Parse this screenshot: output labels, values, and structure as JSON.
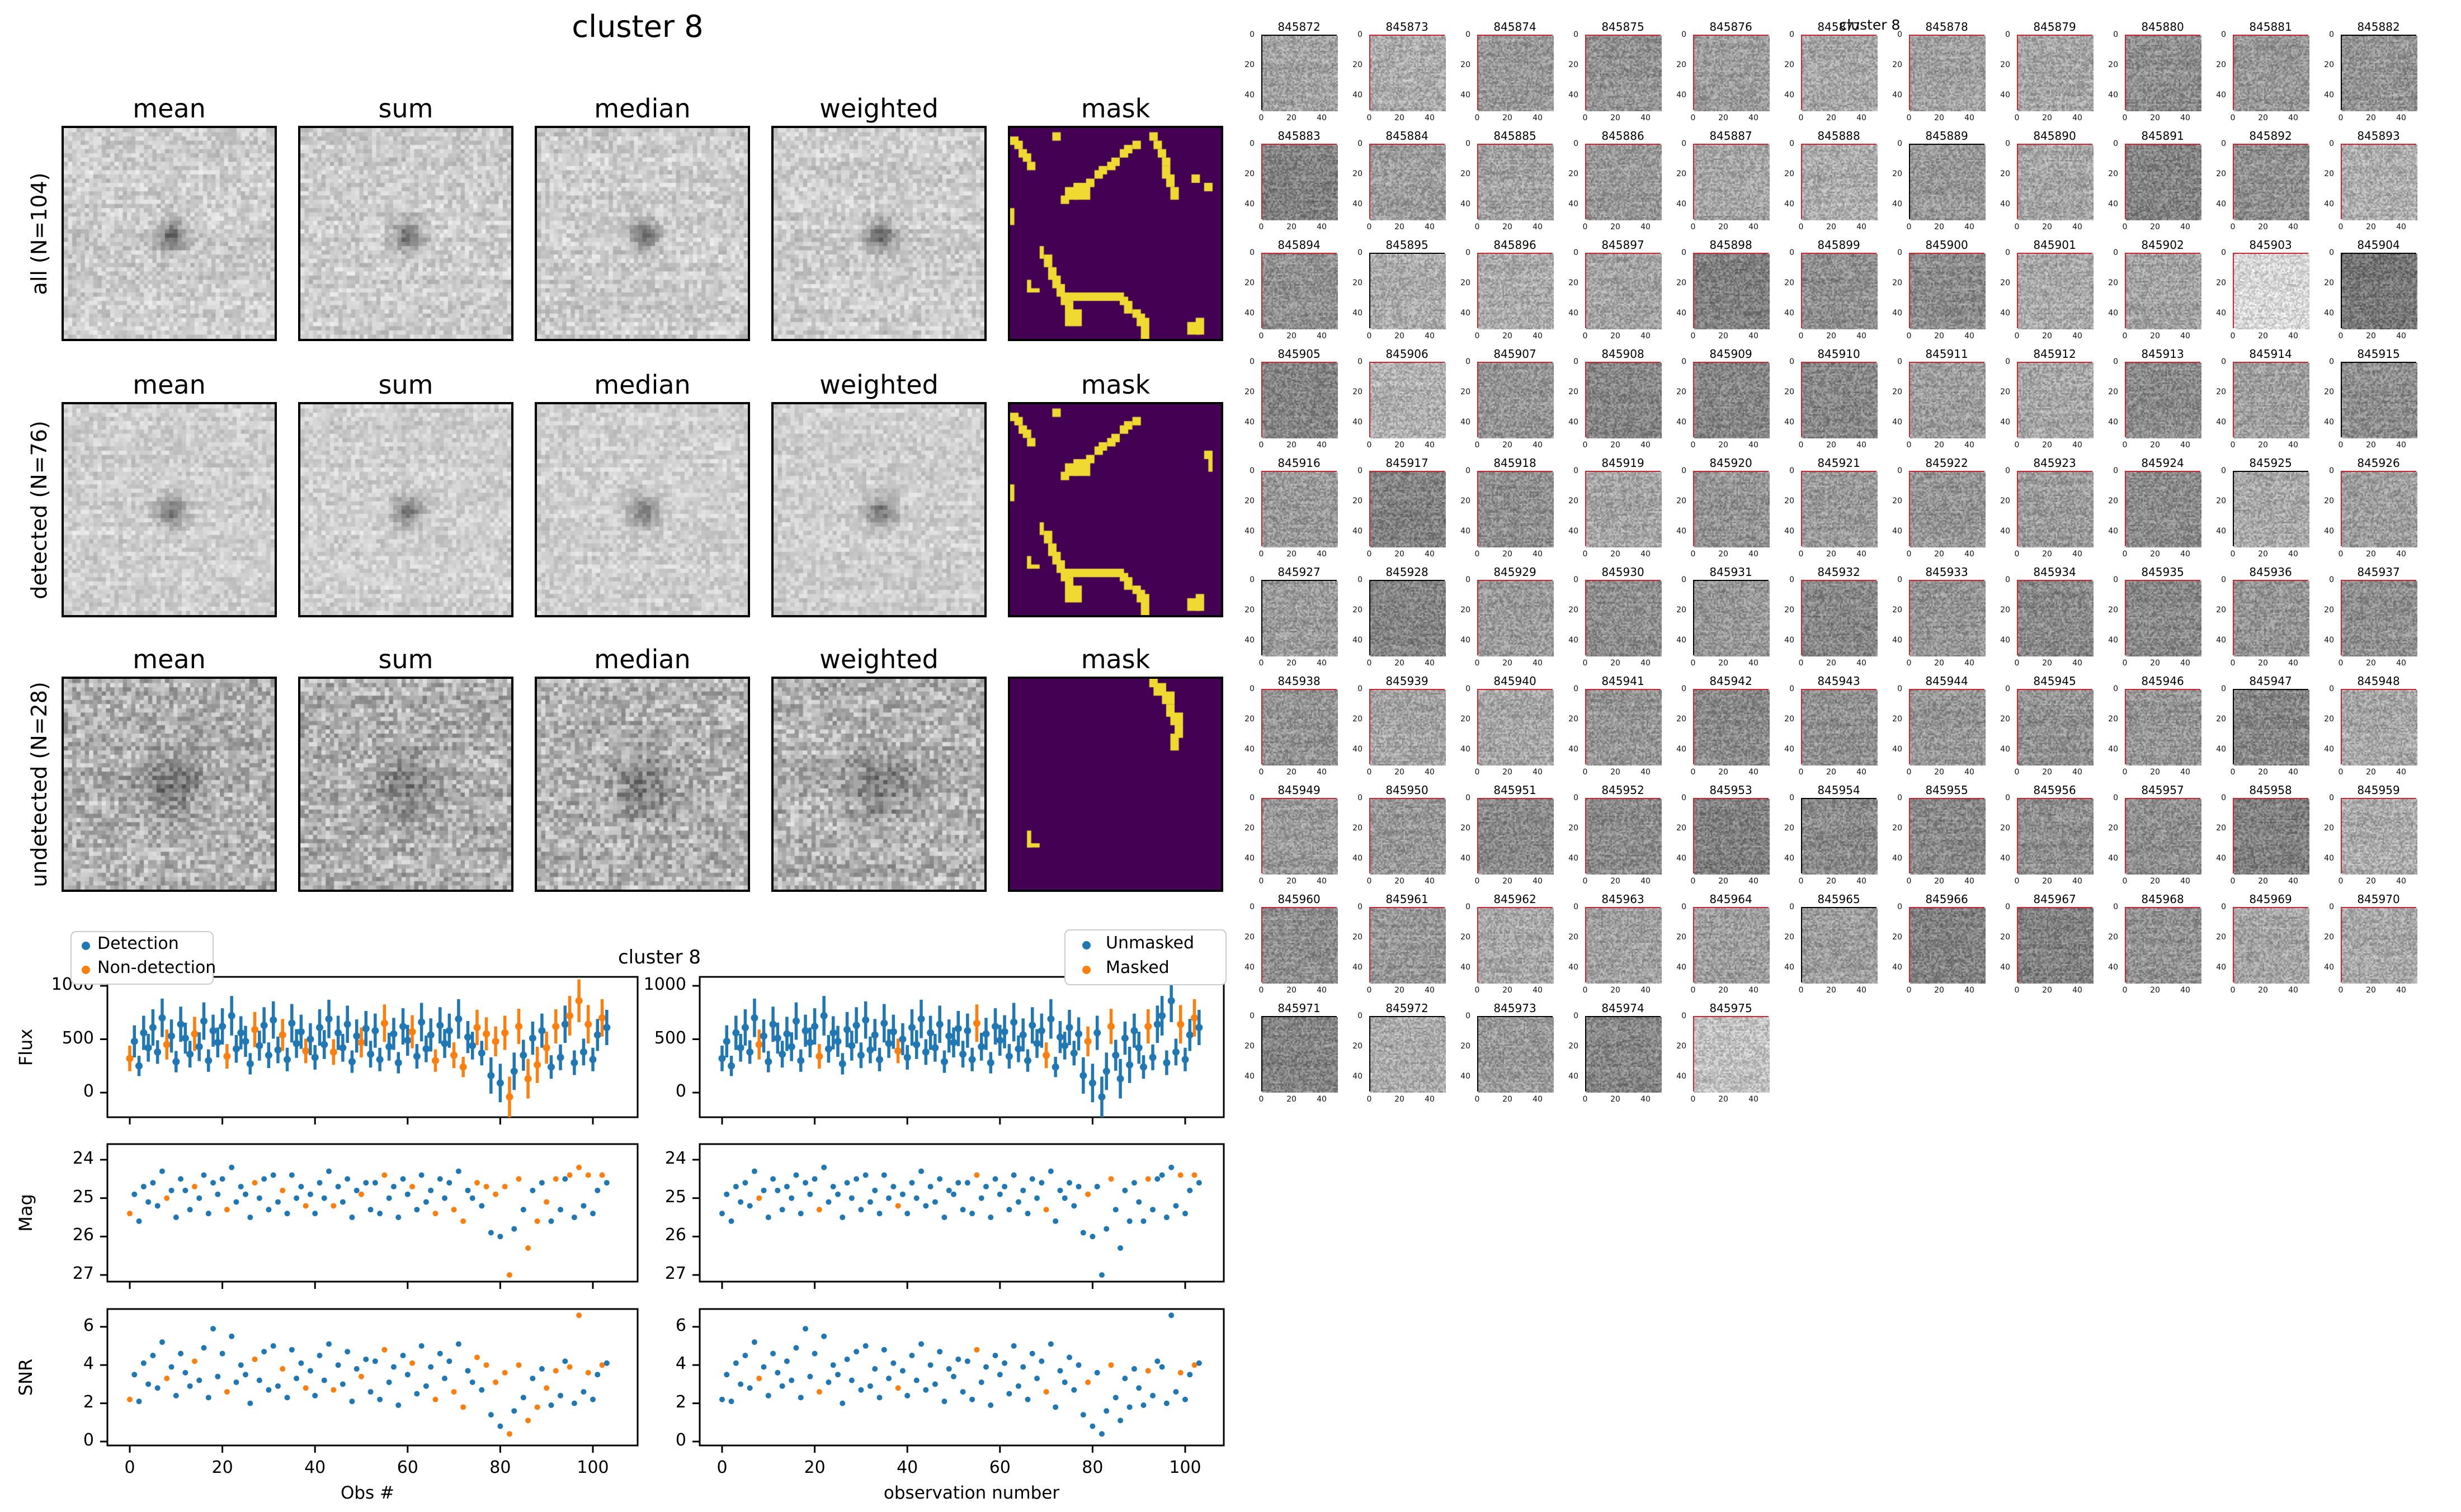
{
  "left_figure": {
    "title": "cluster 8",
    "columns": [
      "mean",
      "sum",
      "median",
      "weighted",
      "mask"
    ],
    "rows": [
      {
        "label": "all (N=104)",
        "mask": "all"
      },
      {
        "label": "detected (N=76)",
        "mask": "detected"
      },
      {
        "label": "undetected (N=28)",
        "mask": "undetected"
      }
    ],
    "mask_bg": "#440154",
    "mask_fg": "#f0d930"
  },
  "masks": {
    "all": [
      [
        0,
        2,
        2,
        2
      ],
      [
        1,
        3,
        2,
        2
      ],
      [
        2,
        5,
        2,
        2
      ],
      [
        3,
        6,
        2,
        2
      ],
      [
        4,
        8,
        2,
        2
      ],
      [
        10,
        1,
        2,
        2
      ],
      [
        12,
        16,
        2,
        2
      ],
      [
        13,
        14,
        3,
        3
      ],
      [
        15,
        13,
        4,
        4
      ],
      [
        18,
        12,
        2,
        2
      ],
      [
        20,
        10,
        2,
        2
      ],
      [
        21,
        9,
        2,
        2
      ],
      [
        23,
        8,
        2,
        2
      ],
      [
        24,
        7,
        2,
        2
      ],
      [
        26,
        5,
        2,
        2
      ],
      [
        27,
        4,
        2,
        2
      ],
      [
        29,
        3,
        2,
        2
      ],
      [
        33,
        1,
        2,
        2
      ],
      [
        34,
        3,
        2,
        2
      ],
      [
        35,
        5,
        2,
        2
      ],
      [
        36,
        7,
        2,
        2
      ],
      [
        36,
        9,
        2,
        3
      ],
      [
        37,
        11,
        2,
        3
      ],
      [
        38,
        14,
        2,
        3
      ],
      [
        43,
        11,
        2,
        2
      ],
      [
        46,
        13,
        2,
        2
      ],
      [
        0,
        19,
        1,
        4
      ],
      [
        7,
        28,
        1,
        3
      ],
      [
        8,
        30,
        2,
        3
      ],
      [
        9,
        33,
        2,
        3
      ],
      [
        10,
        35,
        2,
        3
      ],
      [
        11,
        37,
        2,
        3
      ],
      [
        12,
        39,
        2,
        3
      ],
      [
        13,
        41,
        2,
        3
      ],
      [
        13,
        43,
        4,
        4
      ],
      [
        4,
        36,
        1,
        3
      ],
      [
        4,
        38,
        3,
        1
      ],
      [
        13,
        39,
        14,
        2
      ],
      [
        26,
        40,
        2,
        2
      ],
      [
        27,
        41,
        2,
        3
      ],
      [
        29,
        43,
        2,
        2
      ],
      [
        30,
        44,
        2,
        3
      ],
      [
        31,
        45,
        2,
        5
      ],
      [
        42,
        46,
        3,
        3
      ],
      [
        44,
        45,
        2,
        4
      ]
    ],
    "detected": [
      [
        0,
        2,
        2,
        2
      ],
      [
        1,
        3,
        2,
        2
      ],
      [
        2,
        5,
        2,
        2
      ],
      [
        3,
        6,
        2,
        2
      ],
      [
        4,
        8,
        2,
        2
      ],
      [
        10,
        1,
        2,
        2
      ],
      [
        12,
        16,
        2,
        2
      ],
      [
        13,
        14,
        3,
        3
      ],
      [
        15,
        13,
        4,
        4
      ],
      [
        18,
        12,
        2,
        2
      ],
      [
        20,
        10,
        2,
        2
      ],
      [
        21,
        9,
        2,
        2
      ],
      [
        23,
        8,
        2,
        2
      ],
      [
        24,
        7,
        2,
        2
      ],
      [
        26,
        5,
        2,
        2
      ],
      [
        27,
        4,
        2,
        2
      ],
      [
        29,
        3,
        2,
        2
      ],
      [
        46,
        11,
        2,
        2
      ],
      [
        47,
        13,
        1,
        3
      ],
      [
        0,
        19,
        1,
        4
      ],
      [
        7,
        28,
        1,
        3
      ],
      [
        8,
        30,
        2,
        3
      ],
      [
        9,
        33,
        2,
        3
      ],
      [
        10,
        35,
        2,
        3
      ],
      [
        11,
        37,
        2,
        3
      ],
      [
        12,
        39,
        2,
        3
      ],
      [
        13,
        41,
        2,
        3
      ],
      [
        13,
        43,
        4,
        4
      ],
      [
        4,
        36,
        1,
        3
      ],
      [
        4,
        38,
        3,
        1
      ],
      [
        13,
        39,
        14,
        2
      ],
      [
        26,
        40,
        2,
        2
      ],
      [
        27,
        41,
        2,
        3
      ],
      [
        29,
        43,
        2,
        2
      ],
      [
        30,
        44,
        2,
        3
      ],
      [
        31,
        45,
        2,
        5
      ],
      [
        42,
        46,
        3,
        3
      ],
      [
        44,
        45,
        2,
        4
      ]
    ],
    "undetected": [
      [
        33,
        0,
        2,
        2
      ],
      [
        34,
        1,
        3,
        3
      ],
      [
        36,
        3,
        3,
        3
      ],
      [
        37,
        6,
        2,
        3
      ],
      [
        38,
        8,
        3,
        3
      ],
      [
        39,
        11,
        2,
        3
      ],
      [
        38,
        13,
        2,
        4
      ],
      [
        4,
        36,
        1,
        4
      ],
      [
        4,
        39,
        3,
        1
      ]
    ]
  },
  "chart_data": {
    "type": "scatter-errorbar",
    "title": "cluster 8",
    "xlabel_left": "Obs #",
    "xlabel_right": "observation number",
    "x_ticks": [
      0,
      20,
      40,
      60,
      80,
      100
    ],
    "legend_left": [
      {
        "label": "Detection",
        "color": "#1f77b4"
      },
      {
        "label": "Non-detection",
        "color": "#ff7f0e"
      }
    ],
    "legend_right": [
      {
        "label": "Unmasked",
        "color": "#1f77b4"
      },
      {
        "label": "Masked",
        "color": "#ff7f0e"
      }
    ],
    "colors": {
      "detection": "#1f77b4",
      "nondetection": "#ff7f0e"
    },
    "panels": [
      {
        "ylabel": "Flux",
        "ticks": [
          1000,
          500,
          0
        ],
        "ylim": [
          -230,
          1080
        ]
      },
      {
        "ylabel": "Mag",
        "ticks": [
          24,
          25,
          26,
          27
        ],
        "ylim": [
          27.15,
          23.6
        ],
        "inverted": true
      },
      {
        "ylabel": "SNR",
        "ticks": [
          6,
          4,
          2,
          0
        ],
        "ylim": [
          -0.2,
          6.9
        ]
      }
    ],
    "n_obs": 104,
    "obs": {
      "flux": [
        320,
        480,
        250,
        560,
        420,
        610,
        380,
        700,
        450,
        530,
        290,
        640,
        510,
        360,
        550,
        430,
        670,
        300,
        580,
        470,
        620,
        340,
        720,
        410,
        560,
        480,
        270,
        590,
        440,
        630,
        350,
        680,
        400,
        540,
        310,
        650,
        460,
        570,
        390,
        500,
        330,
        610,
        450,
        690,
        380,
        560,
        420,
        640,
        290,
        530,
        470,
        600,
        360,
        580,
        310,
        650,
        430,
        550,
        280,
        620,
        490,
        570,
        340,
        660,
        410,
        540,
        300,
        630,
        460,
        580,
        350,
        690,
        240,
        520,
        440,
        610,
        370,
        550,
        160,
        480,
        90,
        560,
        -40,
        200,
        620,
        350,
        130,
        510,
        260,
        580,
        420,
        240,
        620,
        330,
        640,
        720,
        280,
        860,
        380,
        640,
        310,
        540,
        700,
        610
      ],
      "flux_err": [
        120,
        150,
        95,
        160,
        130,
        170,
        110,
        180,
        140,
        155,
        100,
        165,
        145,
        125,
        160,
        135,
        175,
        105,
        150,
        140,
        170,
        115,
        185,
        130,
        155,
        145,
        100,
        165,
        140,
        170,
        120,
        175,
        125,
        150,
        110,
        180,
        135,
        160,
        115,
        150,
        115,
        170,
        135,
        180,
        120,
        160,
        130,
        175,
        105,
        155,
        140,
        165,
        125,
        160,
        110,
        175,
        130,
        150,
        100,
        170,
        145,
        155,
        115,
        180,
        125,
        155,
        105,
        170,
        135,
        160,
        120,
        185,
        95,
        150,
        130,
        165,
        115,
        155,
        170,
        140,
        180,
        160,
        190,
        175,
        165,
        145,
        185,
        155,
        170,
        160,
        150,
        110,
        160,
        120,
        175,
        185,
        115,
        200,
        125,
        180,
        110,
        150,
        175,
        165
      ],
      "mag": [
        25.4,
        24.9,
        25.6,
        24.7,
        25.1,
        24.6,
        25.2,
        24.3,
        25.0,
        24.8,
        25.5,
        24.5,
        24.8,
        25.3,
        24.7,
        25.0,
        24.4,
        25.4,
        24.6,
        24.9,
        24.5,
        25.3,
        24.2,
        25.1,
        24.7,
        24.9,
        25.5,
        24.6,
        25.0,
        24.5,
        25.3,
        24.4,
        25.1,
        24.8,
        25.4,
        24.4,
        25.0,
        24.7,
        25.2,
        24.9,
        25.4,
        24.6,
        25.0,
        24.3,
        25.2,
        24.7,
        25.1,
        24.5,
        25.5,
        24.8,
        24.9,
        24.6,
        25.3,
        24.6,
        25.4,
        24.4,
        25.0,
        24.7,
        25.5,
        24.5,
        24.9,
        24.7,
        25.3,
        24.4,
        25.1,
        24.8,
        25.4,
        24.5,
        25.0,
        24.6,
        25.3,
        24.3,
        25.6,
        24.8,
        25.0,
        24.6,
        25.2,
        24.7,
        25.9,
        24.9,
        26.0,
        24.7,
        27.0,
        25.8,
        24.5,
        25.3,
        26.3,
        24.8,
        25.6,
        24.6,
        25.1,
        25.6,
        24.5,
        25.3,
        24.5,
        24.4,
        25.5,
        24.2,
        25.2,
        24.4,
        25.4,
        24.8,
        24.4,
        24.6
      ],
      "snr": [
        2.2,
        3.5,
        2.1,
        4.1,
        3.0,
        4.5,
        2.8,
        5.2,
        3.3,
        3.9,
        2.4,
        4.6,
        3.6,
        2.9,
        4.2,
        3.2,
        4.9,
        2.3,
        5.9,
        3.4,
        4.6,
        2.6,
        5.5,
        3.1,
        4.0,
        3.5,
        2.0,
        4.3,
        3.2,
        4.7,
        2.7,
        5.0,
        2.9,
        3.8,
        2.3,
        4.8,
        3.3,
        4.1,
        2.8,
        3.7,
        2.4,
        4.5,
        3.2,
        5.1,
        2.7,
        4.0,
        3.0,
        4.7,
        2.1,
        3.8,
        3.4,
        4.3,
        2.6,
        4.2,
        2.2,
        4.8,
        3.1,
        3.9,
        1.9,
        4.5,
        3.5,
        4.1,
        2.5,
        5.0,
        2.9,
        3.9,
        2.2,
        4.6,
        3.3,
        4.2,
        2.6,
        5.1,
        1.8,
        3.7,
        3.1,
        4.4,
        2.7,
        4.0,
        1.4,
        3.1,
        0.8,
        3.6,
        0.4,
        1.6,
        4.0,
        2.3,
        1.1,
        3.3,
        1.8,
        3.8,
        2.8,
        1.9,
        3.7,
        2.4,
        4.2,
        3.9,
        2.0,
        6.6,
        2.6,
        3.6,
        2.2,
        3.5,
        4.0,
        4.1
      ],
      "undetected_idx": [
        0,
        8,
        14,
        21,
        27,
        33,
        38,
        44,
        50,
        55,
        61,
        66,
        70,
        72,
        75,
        77,
        79,
        81,
        82,
        84,
        86,
        88,
        90,
        92,
        95,
        97,
        99,
        102
      ],
      "masked_idx": [
        8,
        21,
        38,
        55,
        70,
        79,
        84,
        92,
        99,
        102
      ]
    }
  },
  "right_figure": {
    "title": "cluster 8",
    "cols": 11,
    "axis_ticks": [
      0,
      20,
      40
    ],
    "ids": [
      845872,
      845873,
      845874,
      845875,
      845876,
      845877,
      845878,
      845879,
      845880,
      845881,
      845882,
      845883,
      845884,
      845885,
      845886,
      845887,
      845888,
      845889,
      845890,
      845891,
      845892,
      845893,
      845894,
      845895,
      845896,
      845897,
      845898,
      845899,
      845900,
      845901,
      845902,
      845903,
      845904,
      845905,
      845906,
      845907,
      845908,
      845909,
      845910,
      845911,
      845912,
      845913,
      845914,
      845915,
      845916,
      845917,
      845918,
      845919,
      845920,
      845921,
      845922,
      845923,
      845924,
      845925,
      845926,
      845927,
      845928,
      845929,
      845930,
      845931,
      845932,
      845933,
      845934,
      845935,
      845936,
      845937,
      845938,
      845939,
      845940,
      845941,
      845942,
      845943,
      845944,
      845945,
      845946,
      845947,
      845948,
      845949,
      845950,
      845951,
      845952,
      845953,
      845954,
      845955,
      845956,
      845957,
      845958,
      845959,
      845960,
      845961,
      845962,
      845963,
      845964,
      845965,
      845966,
      845967,
      845968,
      845969,
      845970,
      845971,
      845972,
      845973,
      845974,
      845975
    ],
    "black_border_ids": [
      845872,
      845882,
      845889,
      845895,
      845904,
      845915,
      845925,
      845927,
      845928,
      845931,
      845947,
      845954,
      845965,
      845971,
      845972,
      845973,
      845974
    ],
    "border_red": "#cd2431",
    "border_black": "#000000",
    "tone": {
      "845903": 1.42,
      "845975": 1.28,
      "845906": 1.15,
      "845894": 1.12,
      "845883": 0.78,
      "845904": 0.86,
      "845935": 0.85,
      "845961": 0.88
    }
  }
}
